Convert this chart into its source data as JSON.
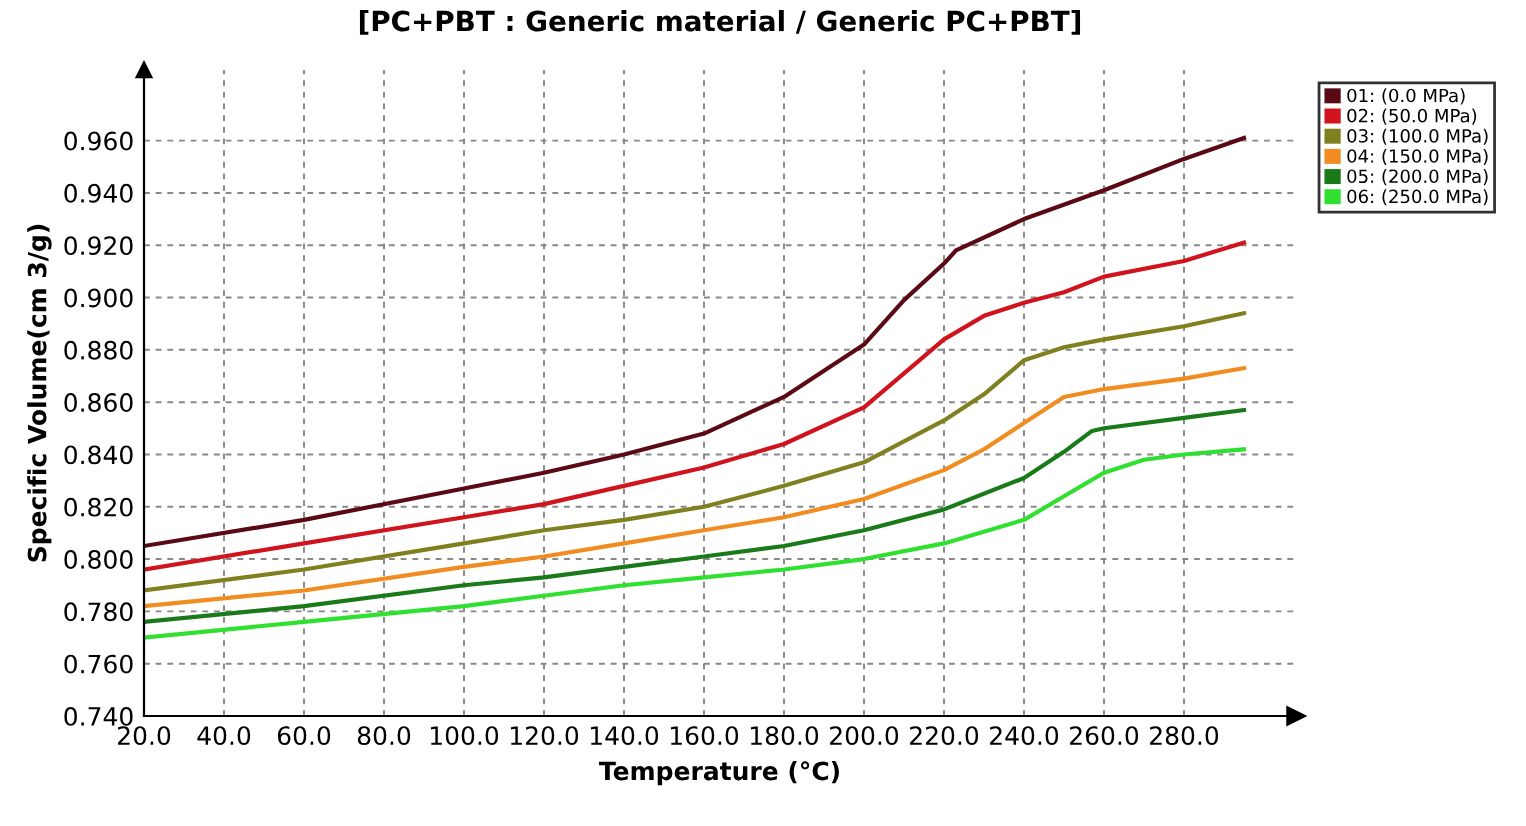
{
  "chart_data": {
    "type": "line",
    "title": "[PC+PBT : Generic material / Generic PC+PBT]",
    "xlabel": "Temperature (°C)",
    "ylabel": "Specific Volume(cm 3/g)",
    "xlim": [
      20,
      308
    ],
    "ylim": [
      0.74,
      0.987
    ],
    "xticks": [
      {
        "value": 20,
        "label": "20.0"
      },
      {
        "value": 40,
        "label": "40.0"
      },
      {
        "value": 60,
        "label": "60.0"
      },
      {
        "value": 80,
        "label": "80.0"
      },
      {
        "value": 100,
        "label": "100.0"
      },
      {
        "value": 120,
        "label": "120.0"
      },
      {
        "value": 140,
        "label": "140.0"
      },
      {
        "value": 160,
        "label": "160.0"
      },
      {
        "value": 180,
        "label": "180.0"
      },
      {
        "value": 200,
        "label": "200.0"
      },
      {
        "value": 220,
        "label": "220.0"
      },
      {
        "value": 240,
        "label": "240.0"
      },
      {
        "value": 260,
        "label": "260.0"
      },
      {
        "value": 280,
        "label": "280.0"
      }
    ],
    "yticks": [
      {
        "value": 0.74,
        "label": "0.740"
      },
      {
        "value": 0.76,
        "label": "0.760"
      },
      {
        "value": 0.78,
        "label": "0.780"
      },
      {
        "value": 0.8,
        "label": "0.800"
      },
      {
        "value": 0.82,
        "label": "0.820"
      },
      {
        "value": 0.84,
        "label": "0.840"
      },
      {
        "value": 0.86,
        "label": "0.860"
      },
      {
        "value": 0.88,
        "label": "0.880"
      },
      {
        "value": 0.9,
        "label": "0.900"
      },
      {
        "value": 0.92,
        "label": "0.920"
      },
      {
        "value": 0.94,
        "label": "0.940"
      },
      {
        "value": 0.96,
        "label": "0.960"
      }
    ],
    "grid": true,
    "legend": "top right",
    "marker": "none",
    "line_style": "solid",
    "series": [
      {
        "name": "01: (0.0 MPa)",
        "color": "#5a0a14",
        "x": [
          20,
          60,
          100,
          120,
          140,
          160,
          180,
          200,
          210,
          220,
          223,
          240,
          260,
          280,
          295
        ],
        "values": [
          0.805,
          0.815,
          0.827,
          0.833,
          0.84,
          0.848,
          0.862,
          0.882,
          0.899,
          0.913,
          0.918,
          0.93,
          0.941,
          0.953,
          0.961
        ]
      },
      {
        "name": "02: (50.0 MPa)",
        "color": "#d0141e",
        "x": [
          20,
          60,
          100,
          120,
          140,
          160,
          180,
          200,
          220,
          230,
          240,
          250,
          260,
          280,
          295
        ],
        "values": [
          0.796,
          0.806,
          0.816,
          0.821,
          0.828,
          0.835,
          0.844,
          0.858,
          0.884,
          0.893,
          0.898,
          0.902,
          0.908,
          0.914,
          0.921
        ]
      },
      {
        "name": "03: (100.0 MPa)",
        "color": "#808020",
        "x": [
          20,
          60,
          100,
          120,
          140,
          160,
          180,
          200,
          220,
          230,
          240,
          250,
          260,
          280,
          295
        ],
        "values": [
          0.788,
          0.796,
          0.806,
          0.811,
          0.815,
          0.82,
          0.828,
          0.837,
          0.853,
          0.863,
          0.876,
          0.881,
          0.884,
          0.889,
          0.894
        ]
      },
      {
        "name": "04: (150.0 MPa)",
        "color": "#f08c20",
        "x": [
          20,
          60,
          100,
          120,
          140,
          160,
          180,
          200,
          220,
          230,
          240,
          250,
          260,
          280,
          295
        ],
        "values": [
          0.782,
          0.788,
          0.797,
          0.801,
          0.806,
          0.811,
          0.816,
          0.823,
          0.834,
          0.842,
          0.852,
          0.862,
          0.865,
          0.869,
          0.873
        ]
      },
      {
        "name": "05: (200.0 MPa)",
        "color": "#1a7a1a",
        "x": [
          20,
          60,
          100,
          120,
          140,
          160,
          180,
          200,
          220,
          240,
          250,
          257,
          260,
          280,
          295
        ],
        "values": [
          0.776,
          0.782,
          0.79,
          0.793,
          0.797,
          0.801,
          0.805,
          0.811,
          0.819,
          0.831,
          0.841,
          0.849,
          0.85,
          0.854,
          0.857
        ]
      },
      {
        "name": "06: (250.0 MPa)",
        "color": "#30e030",
        "x": [
          20,
          60,
          100,
          120,
          140,
          160,
          180,
          200,
          220,
          240,
          250,
          260,
          270,
          280,
          295
        ],
        "values": [
          0.77,
          0.776,
          0.782,
          0.786,
          0.79,
          0.793,
          0.796,
          0.8,
          0.806,
          0.815,
          0.824,
          0.833,
          0.838,
          0.84,
          0.842
        ]
      }
    ]
  }
}
